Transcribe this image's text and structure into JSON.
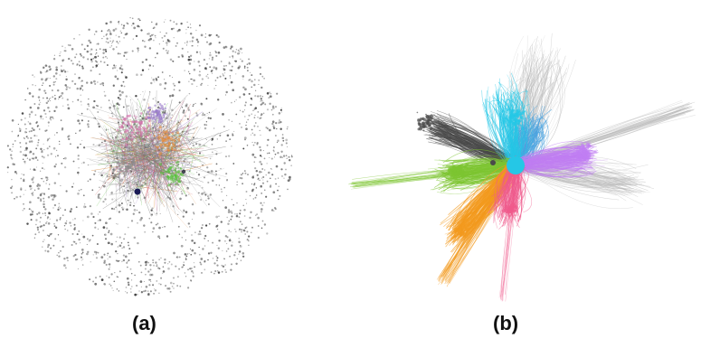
{
  "panels": [
    {
      "label": "(a)",
      "colors": [
        "#d16aa6",
        "#e08a3c",
        "#5cbf3f",
        "#8c8c8c",
        "#9a7bc9",
        "#c94a4a"
      ],
      "hub_color": "#1a1a55"
    },
    {
      "label": "(b)",
      "colors": {
        "dark": "#4a4a4a",
        "green": "#7dc531",
        "orange": "#f39a1e",
        "pink": "#ef5a8c",
        "cyan": "#25c7e6",
        "blue": "#4aa3e0",
        "violet": "#c07ef2",
        "grey": "#b9b9b9"
      }
    }
  ]
}
